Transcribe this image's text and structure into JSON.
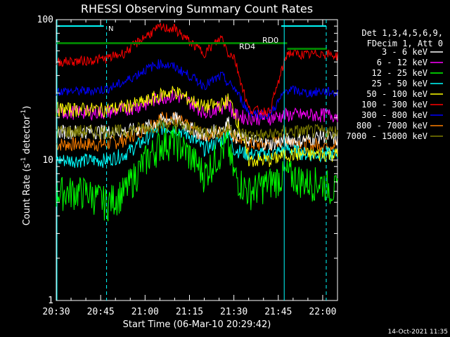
{
  "chart_data": {
    "type": "line",
    "title": "RHESSI Observing Summary Count Rates",
    "xlabel": "Start Time (06-Mar-10 20:29:42)",
    "ylabel": "Count Rate (s⁻¹ detector⁻¹)",
    "ylabel_main": "Count Rate (s",
    "ylabel_sup1": "-1",
    "ylabel_mid": " detector",
    "ylabel_sup2": "-1",
    "ylabel_end": ")",
    "yscale": "log",
    "xlim": [
      "20:30",
      "22:05"
    ],
    "ylim": [
      1,
      100
    ],
    "x_tick_labels": [
      "20:30",
      "20:45",
      "21:00",
      "21:15",
      "21:30",
      "21:45",
      "22:00"
    ],
    "y_tick_labels": [
      "1",
      "10",
      "100"
    ],
    "legend_header": [
      "Det 1,3,4,5,6,9,",
      "FDecim 1, Att 0"
    ],
    "legend_placement": "right",
    "annotations": {
      "rd0": "RD0",
      "rd4": "RD4",
      "n": "N",
      "timestamp": "14-Oct-2021 11:35"
    },
    "time_samples": [
      "20:30",
      "20:40",
      "20:47",
      "20:53",
      "21:00",
      "21:05",
      "21:10",
      "21:15",
      "21:20",
      "21:26",
      "21:28",
      "21:30",
      "21:35",
      "21:42",
      "21:48",
      "21:55",
      "22:00",
      "22:05"
    ],
    "series": [
      {
        "name": "3 - 6 keV",
        "color": "#ffffff",
        "values": [
          16,
          16,
          16,
          16,
          17,
          19,
          20,
          17,
          15,
          17,
          19,
          15,
          14,
          13,
          14,
          14,
          15,
          14
        ]
      },
      {
        "name": "6 - 12 keV",
        "color": "#ff00ff",
        "values": [
          22,
          22,
          22,
          23,
          25,
          28,
          29,
          26,
          22,
          24,
          26,
          21,
          20,
          20,
          21,
          21,
          21,
          21
        ]
      },
      {
        "name": "12 - 25 keV",
        "color": "#00ff00",
        "values": [
          6,
          6,
          5,
          6,
          10,
          13,
          14,
          11,
          8,
          12,
          13,
          8,
          6,
          7,
          8,
          7,
          7,
          6
        ]
      },
      {
        "name": "25 - 50 keV",
        "color": "#00ffff",
        "values": [
          10,
          10,
          10,
          11,
          14,
          17,
          17,
          15,
          12,
          14,
          16,
          12,
          11,
          11,
          12,
          11,
          11,
          11
        ]
      },
      {
        "name": "50 - 100 keV",
        "color": "#ffff00",
        "values": [
          23,
          23,
          23,
          24,
          26,
          29,
          31,
          27,
          24,
          25,
          27,
          23,
          10,
          10,
          11,
          11,
          11,
          11
        ]
      },
      {
        "name": "100 - 300 keV",
        "color": "#ff0000",
        "values": [
          50,
          51,
          53,
          58,
          76,
          88,
          86,
          70,
          58,
          75,
          58,
          55,
          23,
          22,
          58,
          56,
          58,
          55
        ]
      },
      {
        "name": "300 - 800 keV",
        "color": "#0000ff",
        "values": [
          31,
          31,
          32,
          36,
          44,
          49,
          46,
          40,
          34,
          40,
          35,
          33,
          22,
          21,
          32,
          30,
          31,
          30
        ]
      },
      {
        "name": "800 - 7000 keV",
        "color": "#ff8000",
        "values": [
          13,
          13,
          13,
          14,
          17,
          20,
          20,
          17,
          15,
          16,
          17,
          15,
          13,
          13,
          14,
          13,
          13,
          13
        ]
      },
      {
        "name": "7000 - 15000 keV",
        "color": "#808000",
        "values": [
          16,
          16,
          16,
          16,
          17,
          18,
          18,
          17,
          16,
          16,
          17,
          16,
          15,
          15,
          16,
          16,
          16,
          16
        ]
      }
    ]
  }
}
